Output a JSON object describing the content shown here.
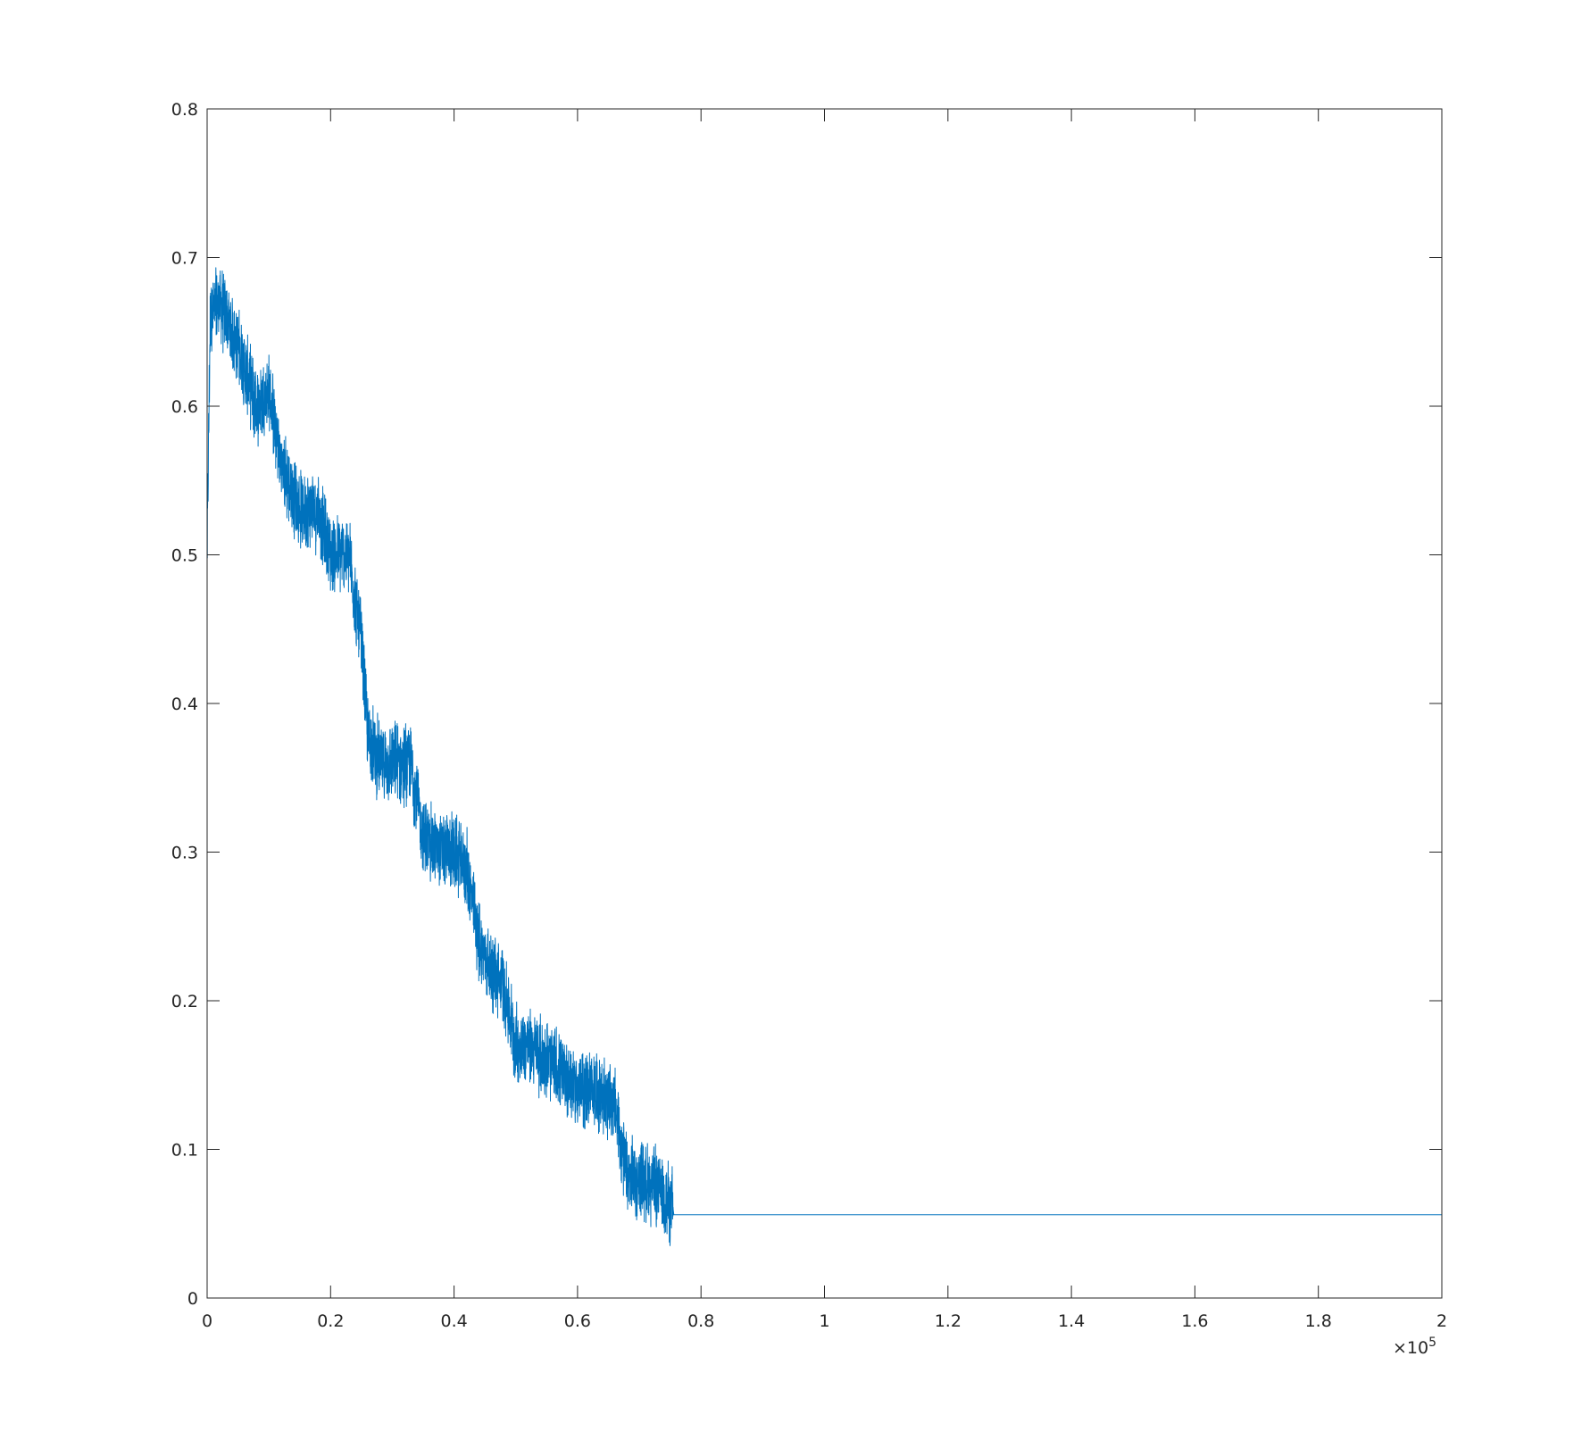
{
  "chart_data": {
    "type": "line",
    "title": "",
    "xlabel": "",
    "ylabel": "",
    "xlim": [
      0,
      200000
    ],
    "ylim": [
      0,
      0.8
    ],
    "x_ticks": [
      0,
      0.2,
      0.4,
      0.6,
      0.8,
      1,
      1.2,
      1.4,
      1.6,
      1.8,
      2
    ],
    "x_tick_labels": [
      "0",
      "0.2",
      "0.4",
      "0.6",
      "0.8",
      "1",
      "1.2",
      "1.4",
      "1.6",
      "1.8",
      "2"
    ],
    "x_exponent_label": {
      "base": "×10",
      "exponent": "5"
    },
    "y_ticks": [
      0,
      0.1,
      0.2,
      0.3,
      0.4,
      0.5,
      0.6,
      0.7,
      0.8
    ],
    "y_tick_labels": [
      "0",
      "0.1",
      "0.2",
      "0.3",
      "0.4",
      "0.5",
      "0.6",
      "0.7",
      "0.8"
    ],
    "grid": false,
    "line_color": "#0072BD",
    "series": [
      {
        "x": [
          0,
          500,
          2000,
          5000,
          8000,
          10000,
          12000,
          15000,
          18000,
          20000,
          23000,
          25000,
          26000,
          28000,
          30000,
          33000,
          35000,
          38000,
          40000,
          42000,
          44000,
          46000,
          48000,
          50000,
          52000,
          55000,
          58000,
          60000,
          63000,
          66000,
          68000,
          70000,
          73000,
          75500,
          75600,
          200000
        ],
        "y": [
          0.5,
          0.66,
          0.67,
          0.64,
          0.6,
          0.61,
          0.56,
          0.53,
          0.53,
          0.5,
          0.5,
          0.44,
          0.38,
          0.36,
          0.36,
          0.36,
          0.31,
          0.3,
          0.3,
          0.29,
          0.24,
          0.22,
          0.21,
          0.17,
          0.17,
          0.16,
          0.15,
          0.14,
          0.14,
          0.13,
          0.08,
          0.08,
          0.075,
          0.06,
          0.056,
          0.056
        ]
      }
    ]
  }
}
